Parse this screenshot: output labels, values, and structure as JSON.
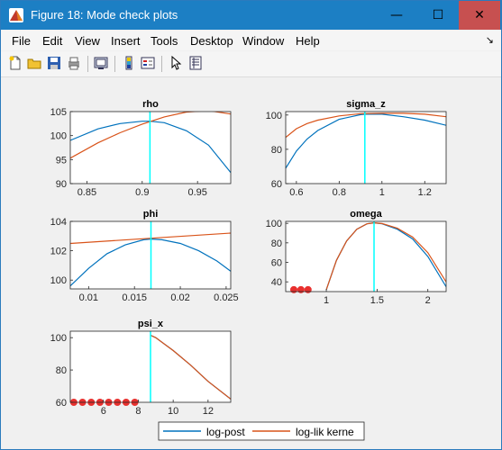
{
  "window": {
    "title": "Figure 18: Mode check plots"
  },
  "titlebar_buttons": {
    "minimize": "—",
    "maximize": "☐",
    "close": "✕"
  },
  "menu": {
    "items": [
      "File",
      "Edit",
      "View",
      "Insert",
      "Tools",
      "Desktop",
      "Window",
      "Help"
    ],
    "arrow": "↘"
  },
  "toolbar": {
    "icons": [
      "new-file-icon",
      "open-folder-icon",
      "save-icon",
      "print-icon",
      "link-plot-icon",
      "colorbar-icon",
      "legend-icon",
      "pointer-icon",
      "property-inspector-icon"
    ]
  },
  "colors": {
    "log_post": "#0072bd",
    "log_lik": "#d95319",
    "mode_line": "#00ffff",
    "marker": "#e8302e"
  },
  "legend": {
    "entries": [
      "log-post",
      "log-lik kerne"
    ]
  },
  "chart_data": [
    {
      "type": "line",
      "title": "rho",
      "xlim": [
        0.835,
        0.98
      ],
      "ylim": [
        90,
        105
      ],
      "xticks": [
        0.85,
        0.9,
        0.95
      ],
      "xtick_labels": [
        "0.85",
        "0.9",
        "0.95"
      ],
      "yticks": [
        90,
        95,
        100,
        105
      ],
      "ytick_labels": [
        "90",
        "95",
        "100",
        "105"
      ],
      "mode": 0.907,
      "series": [
        {
          "name": "log-post",
          "x": [
            0.835,
            0.86,
            0.88,
            0.9,
            0.907,
            0.92,
            0.94,
            0.96,
            0.98
          ],
          "y": [
            99,
            101.4,
            102.5,
            103,
            103,
            102.7,
            101,
            98,
            92.3
          ]
        },
        {
          "name": "log-lik kerne",
          "x": [
            0.835,
            0.86,
            0.88,
            0.9,
            0.92,
            0.94,
            0.96,
            0.98
          ],
          "y": [
            95.3,
            98.5,
            100.6,
            102.4,
            103.9,
            104.9,
            105.2,
            104.5
          ]
        }
      ],
      "markers": []
    },
    {
      "type": "line",
      "title": "sigma_z",
      "xlim": [
        0.55,
        1.3
      ],
      "ylim": [
        60,
        102
      ],
      "xticks": [
        0.6,
        0.8,
        1,
        1.2
      ],
      "xtick_labels": [
        "0.6",
        "0.8",
        "1",
        "1.2"
      ],
      "yticks": [
        60,
        80,
        100
      ],
      "ytick_labels": [
        "60",
        "80",
        "100"
      ],
      "mode": 0.92,
      "series": [
        {
          "name": "log-post",
          "x": [
            0.55,
            0.6,
            0.65,
            0.7,
            0.8,
            0.9,
            0.92,
            1.0,
            1.1,
            1.2,
            1.3
          ],
          "y": [
            69,
            79,
            86,
            91,
            97.5,
            100.2,
            100.5,
            100.5,
            99,
            97,
            94
          ]
        },
        {
          "name": "log-lik kerne",
          "x": [
            0.55,
            0.6,
            0.65,
            0.7,
            0.8,
            0.9,
            1.0,
            1.1,
            1.2,
            1.3
          ],
          "y": [
            87,
            92,
            95,
            97,
            99.5,
            100.8,
            101,
            101,
            100.5,
            99
          ]
        }
      ],
      "markers": []
    },
    {
      "type": "line",
      "title": "phi",
      "xlim": [
        0.008,
        0.0255
      ],
      "ylim": [
        99.4,
        104
      ],
      "xticks": [
        0.01,
        0.015,
        0.02,
        0.025
      ],
      "xtick_labels": [
        "0.01",
        "0.015",
        "0.02",
        "0.025"
      ],
      "yticks": [
        100,
        102,
        104
      ],
      "ytick_labels": [
        "100",
        "102",
        "104"
      ],
      "mode": 0.0168,
      "series": [
        {
          "name": "log-post",
          "x": [
            0.008,
            0.01,
            0.012,
            0.014,
            0.016,
            0.0168,
            0.018,
            0.02,
            0.022,
            0.024,
            0.0255
          ],
          "y": [
            99.6,
            100.8,
            101.8,
            102.4,
            102.75,
            102.8,
            102.75,
            102.5,
            102,
            101.3,
            100.6
          ]
        },
        {
          "name": "log-lik kerne",
          "x": [
            0.008,
            0.0255
          ],
          "y": [
            102.5,
            103.2
          ]
        }
      ],
      "markers": []
    },
    {
      "type": "line",
      "title": "omega",
      "xlim": [
        0.6,
        2.18
      ],
      "ylim": [
        30,
        102
      ],
      "xticks": [
        1,
        1.5,
        2
      ],
      "xtick_labels": [
        "1",
        "1.5",
        "2"
      ],
      "yticks": [
        40,
        60,
        80,
        100
      ],
      "ytick_labels": [
        "40",
        "60",
        "80",
        "100"
      ],
      "mode": 1.47,
      "series": [
        {
          "name": "log-post",
          "x": [
            1.0,
            1.1,
            1.2,
            1.3,
            1.4,
            1.47,
            1.55,
            1.7,
            1.85,
            2.0,
            2.18
          ],
          "y": [
            32,
            62,
            82,
            94,
            99.5,
            100.5,
            99.5,
            94,
            84,
            66,
            35
          ]
        },
        {
          "name": "log-lik kerne",
          "x": [
            1.0,
            1.1,
            1.2,
            1.3,
            1.4,
            1.47,
            1.55,
            1.7,
            1.85,
            2.0,
            2.18
          ],
          "y": [
            32,
            62,
            82,
            94,
            99.5,
            100.5,
            99.8,
            95,
            86,
            70,
            40
          ]
        }
      ],
      "markers": [
        {
          "x": 0.68,
          "y": 32
        },
        {
          "x": 0.75,
          "y": 32
        },
        {
          "x": 0.82,
          "y": 32
        }
      ]
    },
    {
      "type": "line",
      "title": "psi_x",
      "xlim": [
        4.1,
        13.3
      ],
      "ylim": [
        60,
        104
      ],
      "xticks": [
        6,
        8,
        10,
        12
      ],
      "xtick_labels": [
        "6",
        "8",
        "10",
        "12"
      ],
      "yticks": [
        60,
        80,
        100
      ],
      "ytick_labels": [
        "60",
        "80",
        "100"
      ],
      "mode": 8.7,
      "series": [
        {
          "name": "log-post",
          "x": [
            8.7,
            9.0,
            10,
            11,
            12,
            13.3
          ],
          "y": [
            101.5,
            100,
            92,
            83,
            73,
            62
          ]
        },
        {
          "name": "log-lik kerne",
          "x": [
            8.7,
            9.0,
            10,
            11,
            12,
            13.3
          ],
          "y": [
            101.5,
            100,
            92,
            83,
            73,
            62
          ]
        }
      ],
      "markers": [
        {
          "x": 4.3,
          "y": 60
        },
        {
          "x": 4.8,
          "y": 60
        },
        {
          "x": 5.3,
          "y": 60
        },
        {
          "x": 5.8,
          "y": 60
        },
        {
          "x": 6.3,
          "y": 60
        },
        {
          "x": 6.8,
          "y": 60
        },
        {
          "x": 7.3,
          "y": 60
        },
        {
          "x": 7.8,
          "y": 60
        }
      ]
    }
  ]
}
